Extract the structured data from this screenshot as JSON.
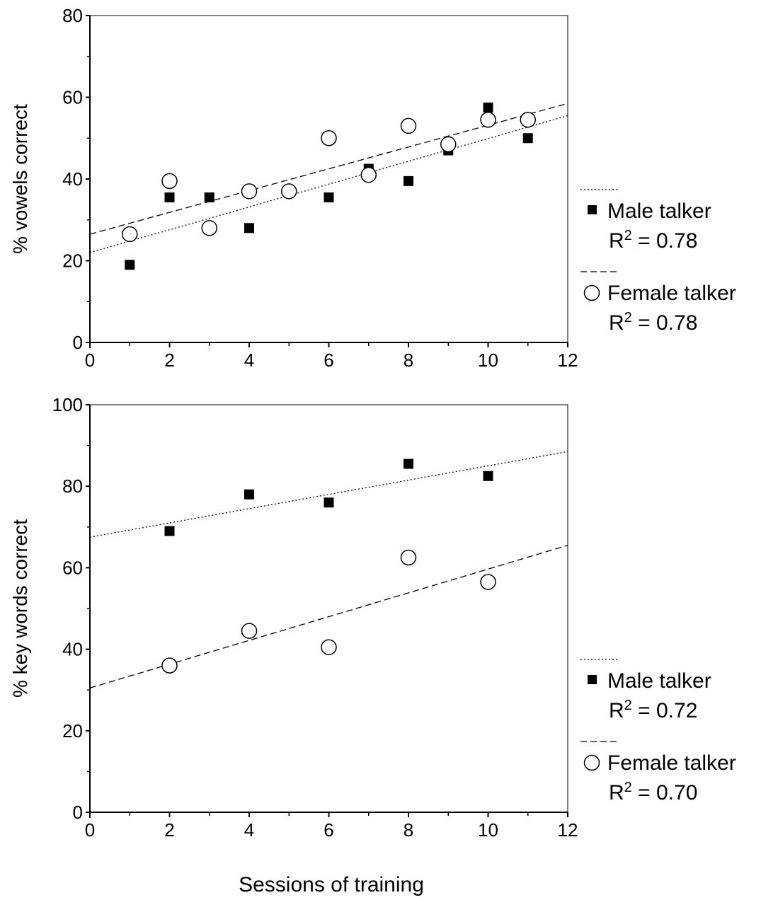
{
  "xaxis_title": "Sessions of training",
  "chart_data": [
    {
      "type": "scatter",
      "ylabel": "% vowels correct",
      "xlim": [
        0,
        12
      ],
      "ylim": [
        0,
        80
      ],
      "x_ticks": [
        0,
        2,
        4,
        6,
        8,
        10,
        12
      ],
      "y_ticks": [
        0,
        20,
        40,
        60,
        80
      ],
      "grid": false,
      "legend_position": "right",
      "series": [
        {
          "name": "Male talker",
          "marker": "filled-square",
          "fit_line": "dotted",
          "r2_label": "R2 = 0.78",
          "fit": [
            [
              0,
              22
            ],
            [
              12,
              55.5
            ]
          ],
          "points": [
            [
              1,
              19
            ],
            [
              2,
              35.5
            ],
            [
              3,
              35.5
            ],
            [
              4,
              28
            ],
            [
              5,
              37
            ],
            [
              6,
              35.5
            ],
            [
              7,
              42.5
            ],
            [
              8,
              39.5
            ],
            [
              9,
              47
            ],
            [
              10,
              57.5
            ],
            [
              11,
              50
            ]
          ]
        },
        {
          "name": "Female talker",
          "marker": "open-circle",
          "fit_line": "dashed",
          "r2_label": "R2 = 0.78",
          "fit": [
            [
              0,
              26.5
            ],
            [
              12,
              58.5
            ]
          ],
          "points": [
            [
              1,
              26.5
            ],
            [
              2,
              39.5
            ],
            [
              3,
              28
            ],
            [
              4,
              37
            ],
            [
              5,
              37
            ],
            [
              6,
              50
            ],
            [
              7,
              41
            ],
            [
              8,
              53
            ],
            [
              9,
              48.5
            ],
            [
              10,
              54.5
            ],
            [
              11,
              54.5
            ]
          ]
        }
      ]
    },
    {
      "type": "scatter",
      "ylabel": "% key words correct",
      "xlim": [
        0,
        12
      ],
      "ylim": [
        0,
        100
      ],
      "x_ticks": [
        0,
        2,
        4,
        6,
        8,
        10,
        12
      ],
      "y_ticks": [
        0,
        20,
        40,
        60,
        80,
        100
      ],
      "grid": false,
      "legend_position": "right",
      "series": [
        {
          "name": "Male talker",
          "marker": "filled-square",
          "fit_line": "dotted",
          "r2_label": "R2 = 0.72",
          "fit": [
            [
              0,
              67.5
            ],
            [
              12,
              88.5
            ]
          ],
          "points": [
            [
              2,
              69
            ],
            [
              4,
              78
            ],
            [
              6,
              76
            ],
            [
              8,
              85.5
            ],
            [
              10,
              82.5
            ]
          ]
        },
        {
          "name": "Female talker",
          "marker": "open-circle",
          "fit_line": "dashed",
          "r2_label": "R2 = 0.70",
          "fit": [
            [
              0,
              30.5
            ],
            [
              12,
              65.5
            ]
          ],
          "points": [
            [
              2,
              36
            ],
            [
              4,
              44.5
            ],
            [
              6,
              40.5
            ],
            [
              8,
              62.5
            ],
            [
              10,
              56.5
            ]
          ]
        }
      ]
    }
  ]
}
